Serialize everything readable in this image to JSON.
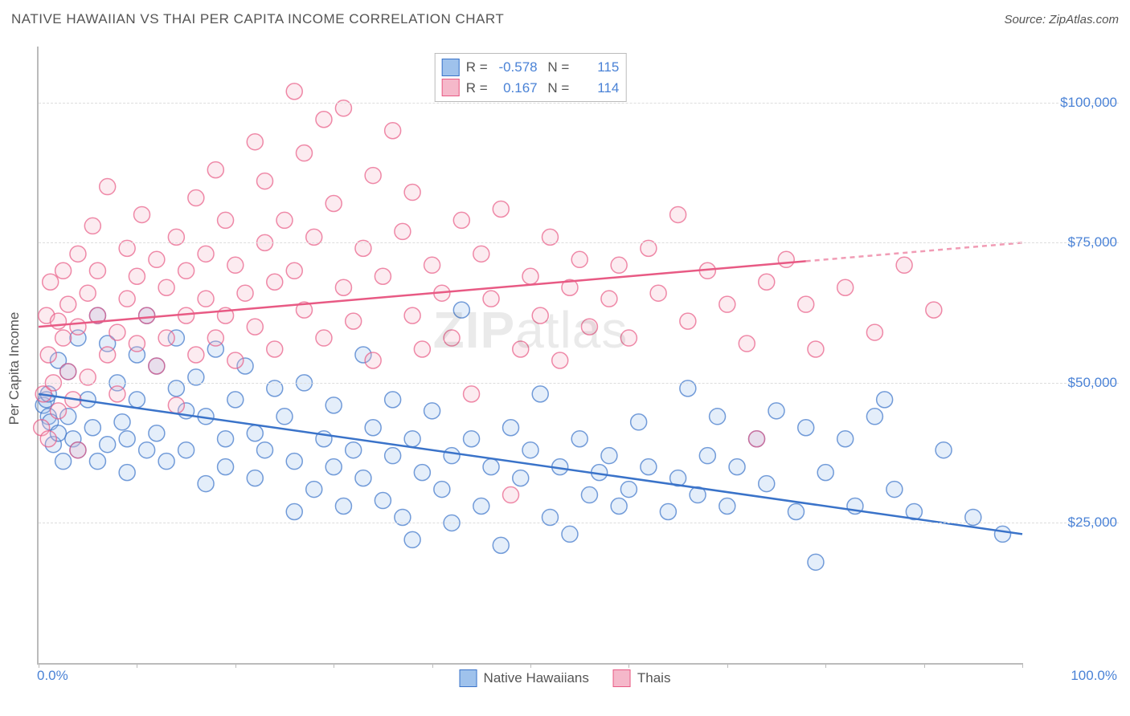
{
  "title": "NATIVE HAWAIIAN VS THAI PER CAPITA INCOME CORRELATION CHART",
  "source": "Source: ZipAtlas.com",
  "watermark": "ZIPatlas",
  "yaxis_label": "Per Capita Income",
  "chart": {
    "type": "scatter",
    "xlim": [
      0,
      100
    ],
    "ylim": [
      0,
      110000
    ],
    "xtick_positions": [
      0,
      10,
      20,
      30,
      40,
      50,
      60,
      70,
      80,
      90,
      100
    ],
    "xtick_min_label": "0.0%",
    "xtick_max_label": "100.0%",
    "yticks": [
      {
        "v": 25000,
        "label": "$25,000"
      },
      {
        "v": 50000,
        "label": "$50,000"
      },
      {
        "v": 75000,
        "label": "$75,000"
      },
      {
        "v": 100000,
        "label": "$100,000"
      }
    ],
    "background_color": "#ffffff",
    "grid_color": "#dddddd",
    "axis_color": "#bbbbbb",
    "ticklabel_color": "#4a82d6",
    "marker_radius": 10,
    "marker_stroke_width": 1.5,
    "marker_fill_opacity": 0.28,
    "trend_line_width": 2.5,
    "series": [
      {
        "name": "Native Hawaiians",
        "color_stroke": "#3a73c9",
        "color_fill": "#9fc2ec",
        "R": "-0.578",
        "N": "115",
        "trend": {
          "y_at_x0": 48000,
          "y_at_x100": 23000,
          "dash_after_x": 100
        },
        "points": [
          [
            0.5,
            46000
          ],
          [
            0.8,
            47000
          ],
          [
            1,
            44000
          ],
          [
            1,
            48000
          ],
          [
            1.2,
            43000
          ],
          [
            1.5,
            39000
          ],
          [
            2,
            54000
          ],
          [
            2,
            41000
          ],
          [
            2.5,
            36000
          ],
          [
            3,
            52000
          ],
          [
            3,
            44000
          ],
          [
            3.5,
            40000
          ],
          [
            4,
            58000
          ],
          [
            4,
            38000
          ],
          [
            5,
            47000
          ],
          [
            5.5,
            42000
          ],
          [
            6,
            36000
          ],
          [
            6,
            62000
          ],
          [
            7,
            39000
          ],
          [
            7,
            57000
          ],
          [
            8,
            50000
          ],
          [
            8.5,
            43000
          ],
          [
            9,
            34000
          ],
          [
            9,
            40000
          ],
          [
            10,
            55000
          ],
          [
            10,
            47000
          ],
          [
            11,
            38000
          ],
          [
            11,
            62000
          ],
          [
            12,
            41000
          ],
          [
            12,
            53000
          ],
          [
            13,
            36000
          ],
          [
            14,
            49000
          ],
          [
            14,
            58000
          ],
          [
            15,
            45000
          ],
          [
            15,
            38000
          ],
          [
            16,
            51000
          ],
          [
            17,
            32000
          ],
          [
            17,
            44000
          ],
          [
            18,
            56000
          ],
          [
            19,
            40000
          ],
          [
            19,
            35000
          ],
          [
            20,
            47000
          ],
          [
            21,
            53000
          ],
          [
            22,
            33000
          ],
          [
            22,
            41000
          ],
          [
            23,
            38000
          ],
          [
            24,
            49000
          ],
          [
            25,
            44000
          ],
          [
            26,
            36000
          ],
          [
            26,
            27000
          ],
          [
            27,
            50000
          ],
          [
            28,
            31000
          ],
          [
            29,
            40000
          ],
          [
            30,
            35000
          ],
          [
            30,
            46000
          ],
          [
            31,
            28000
          ],
          [
            32,
            38000
          ],
          [
            33,
            55000
          ],
          [
            33,
            33000
          ],
          [
            34,
            42000
          ],
          [
            35,
            29000
          ],
          [
            36,
            47000
          ],
          [
            36,
            37000
          ],
          [
            37,
            26000
          ],
          [
            38,
            40000
          ],
          [
            38,
            22000
          ],
          [
            39,
            34000
          ],
          [
            40,
            45000
          ],
          [
            41,
            31000
          ],
          [
            42,
            37000
          ],
          [
            42,
            25000
          ],
          [
            43,
            63000
          ],
          [
            44,
            40000
          ],
          [
            45,
            28000
          ],
          [
            46,
            35000
          ],
          [
            47,
            21000
          ],
          [
            48,
            42000
          ],
          [
            49,
            33000
          ],
          [
            50,
            38000
          ],
          [
            51,
            48000
          ],
          [
            52,
            26000
          ],
          [
            53,
            35000
          ],
          [
            54,
            23000
          ],
          [
            55,
            40000
          ],
          [
            56,
            30000
          ],
          [
            57,
            34000
          ],
          [
            58,
            37000
          ],
          [
            59,
            28000
          ],
          [
            60,
            31000
          ],
          [
            61,
            43000
          ],
          [
            62,
            35000
          ],
          [
            64,
            27000
          ],
          [
            65,
            33000
          ],
          [
            66,
            49000
          ],
          [
            67,
            30000
          ],
          [
            68,
            37000
          ],
          [
            69,
            44000
          ],
          [
            70,
            28000
          ],
          [
            71,
            35000
          ],
          [
            73,
            40000
          ],
          [
            74,
            32000
          ],
          [
            75,
            45000
          ],
          [
            77,
            27000
          ],
          [
            78,
            42000
          ],
          [
            79,
            18000
          ],
          [
            80,
            34000
          ],
          [
            82,
            40000
          ],
          [
            83,
            28000
          ],
          [
            85,
            44000
          ],
          [
            86,
            47000
          ],
          [
            87,
            31000
          ],
          [
            89,
            27000
          ],
          [
            92,
            38000
          ],
          [
            95,
            26000
          ],
          [
            98,
            23000
          ]
        ]
      },
      {
        "name": "Thais",
        "color_stroke": "#e85a84",
        "color_fill": "#f5b8ca",
        "R": "0.167",
        "N": "114",
        "trend": {
          "y_at_x0": 60000,
          "y_at_x100": 75000,
          "dash_after_x": 78
        },
        "points": [
          [
            0.3,
            42000
          ],
          [
            0.5,
            48000
          ],
          [
            0.8,
            62000
          ],
          [
            1,
            55000
          ],
          [
            1,
            40000
          ],
          [
            1.2,
            68000
          ],
          [
            1.5,
            50000
          ],
          [
            2,
            61000
          ],
          [
            2,
            45000
          ],
          [
            2.5,
            70000
          ],
          [
            2.5,
            58000
          ],
          [
            3,
            52000
          ],
          [
            3,
            64000
          ],
          [
            3.5,
            47000
          ],
          [
            4,
            38000
          ],
          [
            4,
            60000
          ],
          [
            4,
            73000
          ],
          [
            5,
            66000
          ],
          [
            5,
            51000
          ],
          [
            5.5,
            78000
          ],
          [
            6,
            62000
          ],
          [
            6,
            70000
          ],
          [
            7,
            55000
          ],
          [
            7,
            85000
          ],
          [
            8,
            59000
          ],
          [
            8,
            48000
          ],
          [
            9,
            74000
          ],
          [
            9,
            65000
          ],
          [
            10,
            57000
          ],
          [
            10,
            69000
          ],
          [
            10.5,
            80000
          ],
          [
            11,
            62000
          ],
          [
            12,
            53000
          ],
          [
            12,
            72000
          ],
          [
            13,
            67000
          ],
          [
            13,
            58000
          ],
          [
            14,
            76000
          ],
          [
            14,
            46000
          ],
          [
            15,
            62000
          ],
          [
            15,
            70000
          ],
          [
            16,
            55000
          ],
          [
            16,
            83000
          ],
          [
            17,
            65000
          ],
          [
            17,
            73000
          ],
          [
            18,
            58000
          ],
          [
            18,
            88000
          ],
          [
            19,
            79000
          ],
          [
            19,
            62000
          ],
          [
            20,
            71000
          ],
          [
            20,
            54000
          ],
          [
            21,
            66000
          ],
          [
            22,
            93000
          ],
          [
            22,
            60000
          ],
          [
            23,
            75000
          ],
          [
            23,
            86000
          ],
          [
            24,
            68000
          ],
          [
            24,
            56000
          ],
          [
            25,
            79000
          ],
          [
            26,
            102000
          ],
          [
            26,
            70000
          ],
          [
            27,
            63000
          ],
          [
            27,
            91000
          ],
          [
            28,
            76000
          ],
          [
            29,
            97000
          ],
          [
            29,
            58000
          ],
          [
            30,
            82000
          ],
          [
            31,
            67000
          ],
          [
            31,
            99000
          ],
          [
            32,
            61000
          ],
          [
            33,
            74000
          ],
          [
            34,
            54000
          ],
          [
            34,
            87000
          ],
          [
            35,
            69000
          ],
          [
            36,
            95000
          ],
          [
            37,
            77000
          ],
          [
            38,
            62000
          ],
          [
            38,
            84000
          ],
          [
            39,
            56000
          ],
          [
            40,
            71000
          ],
          [
            41,
            66000
          ],
          [
            42,
            58000
          ],
          [
            43,
            79000
          ],
          [
            44,
            48000
          ],
          [
            45,
            73000
          ],
          [
            46,
            65000
          ],
          [
            47,
            81000
          ],
          [
            48,
            30000
          ],
          [
            49,
            56000
          ],
          [
            50,
            69000
          ],
          [
            51,
            62000
          ],
          [
            52,
            76000
          ],
          [
            53,
            54000
          ],
          [
            54,
            67000
          ],
          [
            55,
            72000
          ],
          [
            56,
            60000
          ],
          [
            58,
            65000
          ],
          [
            59,
            71000
          ],
          [
            60,
            58000
          ],
          [
            62,
            74000
          ],
          [
            63,
            66000
          ],
          [
            65,
            80000
          ],
          [
            66,
            61000
          ],
          [
            68,
            70000
          ],
          [
            70,
            64000
          ],
          [
            72,
            57000
          ],
          [
            73,
            40000
          ],
          [
            74,
            68000
          ],
          [
            76,
            72000
          ],
          [
            78,
            64000
          ],
          [
            79,
            56000
          ],
          [
            82,
            67000
          ],
          [
            85,
            59000
          ],
          [
            88,
            71000
          ],
          [
            91,
            63000
          ]
        ]
      }
    ]
  },
  "legend": [
    {
      "label": "Native Hawaiians",
      "stroke": "#3a73c9",
      "fill": "#9fc2ec"
    },
    {
      "label": "Thais",
      "stroke": "#e85a84",
      "fill": "#f5b8ca"
    }
  ]
}
